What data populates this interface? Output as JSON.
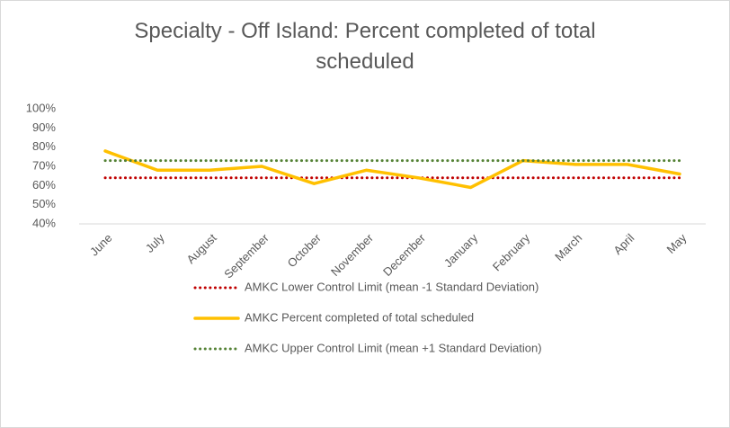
{
  "chart_data": {
    "type": "line",
    "title": "Specialty - Off Island: Percent completed of total scheduled",
    "categories": [
      "June",
      "July",
      "August",
      "September",
      "October",
      "November",
      "December",
      "January",
      "February",
      "March",
      "April",
      "May"
    ],
    "series": [
      {
        "name": "AMKC Lower Control Limit (mean -1 Standard Deviation)",
        "color": "#c00000",
        "dotted": true,
        "values": [
          64,
          64,
          64,
          64,
          64,
          64,
          64,
          64,
          64,
          64,
          64,
          64
        ]
      },
      {
        "name": "AMKC Percent completed of total scheduled",
        "color": "#ffc000",
        "dotted": false,
        "values": [
          78,
          68,
          68,
          70,
          61,
          68,
          64,
          59,
          73,
          71,
          71,
          66
        ]
      },
      {
        "name": "AMKC Upper Control Limit (mean +1 Standard Deviation)",
        "color": "#548235",
        "dotted": true,
        "values": [
          73,
          73,
          73,
          73,
          73,
          73,
          73,
          73,
          73,
          73,
          73,
          73
        ]
      }
    ],
    "ylim": [
      40,
      100
    ],
    "yticks": [
      {
        "value": 40,
        "label": "40%"
      },
      {
        "value": 50,
        "label": "50%"
      },
      {
        "value": 60,
        "label": "60%"
      },
      {
        "value": 70,
        "label": "70%"
      },
      {
        "value": 80,
        "label": "80%"
      },
      {
        "value": 90,
        "label": "90%"
      },
      {
        "value": 100,
        "label": "100%"
      }
    ],
    "grid": false,
    "legend": "bottom"
  }
}
